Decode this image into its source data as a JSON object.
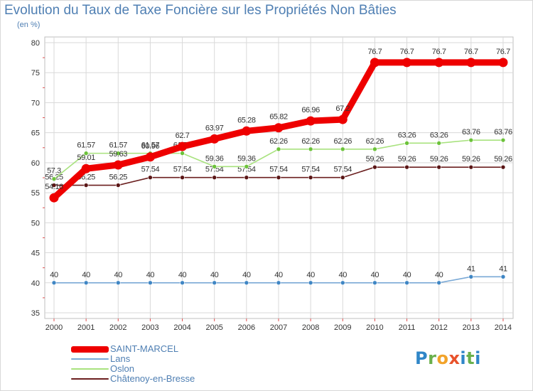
{
  "title": "Evolution du Taux de Taxe Foncière sur les Propriétés Non Bâties",
  "subtitle": "(en %)",
  "brand": "Proxiti",
  "colors": {
    "title": "#4f7fb3",
    "grid": "#d9d9d9",
    "axis": "#555555"
  },
  "chart_data": {
    "type": "line",
    "title": "Evolution du Taux de Taxe Foncière sur les Propriétés Non Bâties",
    "ylabel": "(en %)",
    "xlabel": "",
    "ylim": [
      35,
      80
    ],
    "yticks": [
      35,
      40,
      45,
      50,
      55,
      60,
      65,
      70,
      75,
      80
    ],
    "categories": [
      "2000",
      "2001",
      "2002",
      "2003",
      "2004",
      "2005",
      "2006",
      "2007",
      "2008",
      "2009",
      "2010",
      "2011",
      "2012",
      "2013",
      "2014"
    ],
    "legend_position": "bottom-left",
    "series": [
      {
        "name": "Châtenoy-en-Bresse",
        "color": "#6b1f1f",
        "point_color": "#5a1515",
        "values": [
          56.25,
          56.25,
          56.25,
          57.54,
          57.54,
          57.54,
          57.54,
          57.54,
          57.54,
          57.54,
          59.26,
          59.26,
          59.26,
          59.26,
          59.26
        ],
        "labels": [
          "56.25",
          "56.25",
          "56.25",
          "57.54",
          "57.54",
          "57.54",
          "57.54",
          "57.54",
          "57.54",
          "57.54",
          "59.26",
          "59.26",
          "59.26",
          "59.26",
          "59.26"
        ]
      },
      {
        "name": "Lans",
        "color": "#7aa9d6",
        "point_color": "#3f86c4",
        "values": [
          40,
          40,
          40,
          40,
          40,
          40,
          40,
          40,
          40,
          40,
          40,
          40,
          40,
          41,
          41
        ],
        "labels": [
          "40",
          "40",
          "40",
          "40",
          "40",
          "40",
          "40",
          "40",
          "40",
          "40",
          "40",
          "40",
          "40",
          "41",
          "41"
        ]
      },
      {
        "name": "Oslon",
        "color": "#a8e27e",
        "point_color": "#6cc23a",
        "values": [
          57.3,
          61.57,
          61.57,
          61.57,
          61.57,
          59.36,
          59.36,
          62.26,
          62.26,
          62.26,
          62.26,
          63.26,
          63.26,
          63.76,
          63.76
        ],
        "labels": [
          "57.3",
          "61.57",
          "61.57",
          "61.57",
          "61.57",
          "59.36",
          "59.36",
          "62.26",
          "62.26",
          "62.26",
          "62.26",
          "63.26",
          "63.26",
          "63.76",
          "63.76"
        ]
      },
      {
        "name": "SAINT-MARCEL",
        "color": "#ee0000",
        "point_color": "#ee0000",
        "values": [
          54.16,
          59.01,
          59.63,
          60.96,
          62.7,
          63.97,
          65.28,
          65.82,
          66.96,
          67.2,
          76.7,
          76.7,
          76.7,
          76.7,
          76.7
        ],
        "labels": [
          "54.16",
          "59.01",
          "59.63",
          "60.96",
          "62.7",
          "63.97",
          "65.28",
          "65.82",
          "66.96",
          "67.2",
          "76.7",
          "76.7",
          "76.7",
          "76.7",
          "76.7"
        ]
      }
    ]
  },
  "legend": [
    {
      "name": "SAINT-MARCEL"
    },
    {
      "name": "Lans"
    },
    {
      "name": "Oslon"
    },
    {
      "name": "Châtenoy-en-Bresse"
    }
  ]
}
